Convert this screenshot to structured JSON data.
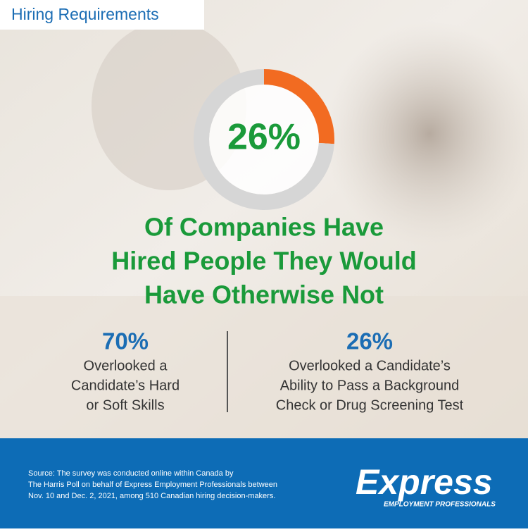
{
  "header": {
    "title": "Hiring Requirements"
  },
  "chart_data": {
    "type": "donut",
    "values": [
      26,
      74
    ],
    "colors": [
      "#f26b21",
      "#d6d6d6"
    ],
    "center_label": "26%"
  },
  "headline": [
    "Of Companies Have",
    "Hired People They Would",
    "Have Otherwise Not"
  ],
  "stats": [
    {
      "figure": "70%",
      "lines": [
        "Overlooked a",
        "Candidate’s Hard",
        "or Soft Skills"
      ]
    },
    {
      "figure": "26%",
      "lines": [
        "Overlooked a Candidate’s",
        "Ability to Pass a Background",
        "Check or Drug Screening Test"
      ]
    }
  ],
  "footer": {
    "source": [
      "Source: The survey was conducted online within Canada by",
      "The Harris Poll on behalf of Express Employment Professionals between",
      "Nov. 10 and Dec. 2, 2021, among 510 Canadian hiring decision-makers."
    ],
    "logo": "Express",
    "logo_tagline": "EMPLOYMENT PROFESSIONALS"
  }
}
